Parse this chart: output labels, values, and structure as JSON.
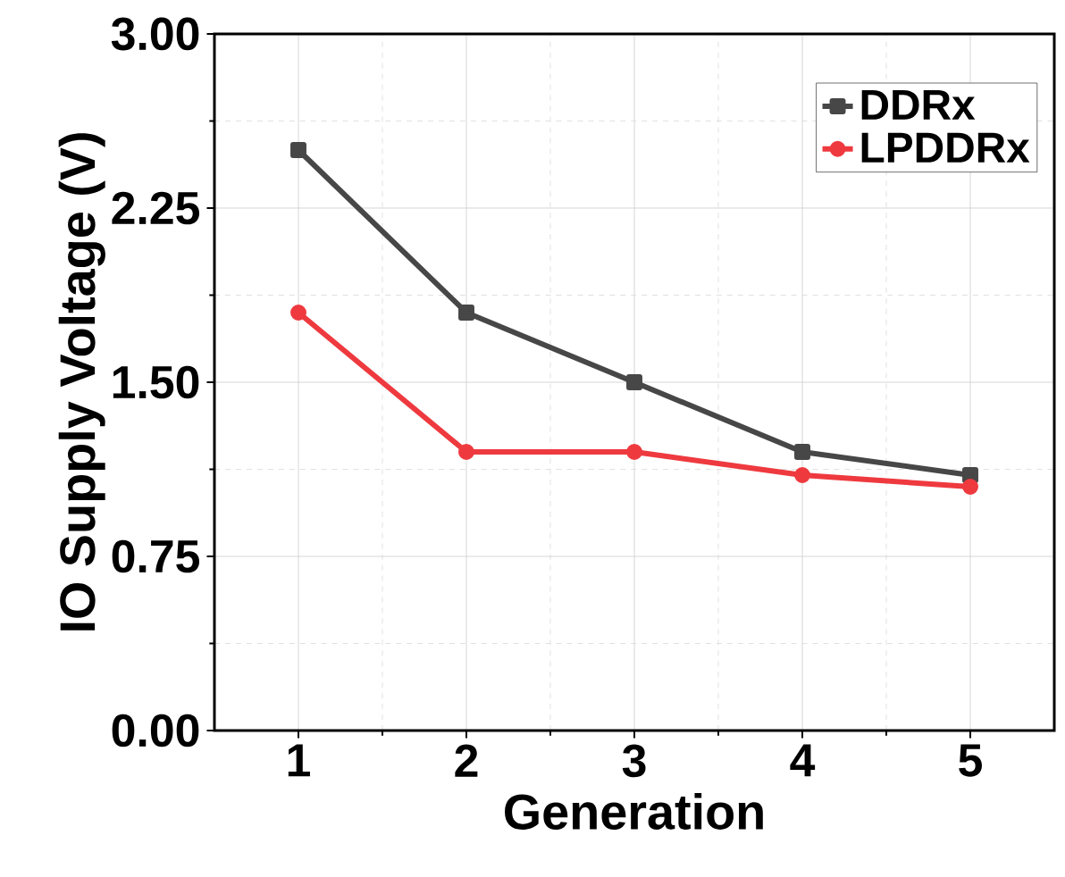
{
  "chart_data": {
    "type": "line",
    "xlabel": "Generation",
    "ylabel": "IO Supply Voltage (V)",
    "x": [
      1,
      2,
      3,
      4,
      5
    ],
    "xlim": [
      0.5,
      5.5
    ],
    "xticks": [
      1,
      2,
      3,
      4,
      5
    ],
    "ylim": [
      0,
      3
    ],
    "yticks": [
      {
        "value": 0,
        "label": "0.00"
      },
      {
        "value": 0.75,
        "label": "0.75"
      },
      {
        "value": 1.5,
        "label": "1.50"
      },
      {
        "value": 2.25,
        "label": "2.25"
      },
      {
        "value": 3,
        "label": "3.00"
      }
    ],
    "grid": true,
    "legend": "top right",
    "line_style": "solid",
    "series": [
      {
        "name": "DDRx",
        "color": "#474747",
        "marker": "square",
        "values": [
          2.5,
          1.8,
          1.5,
          1.2,
          1.1
        ]
      },
      {
        "name": "LPDDRx",
        "color": "#ee3a3f",
        "marker": "circle",
        "values": [
          1.8,
          1.2,
          1.2,
          1.1,
          1.05
        ]
      }
    ]
  }
}
